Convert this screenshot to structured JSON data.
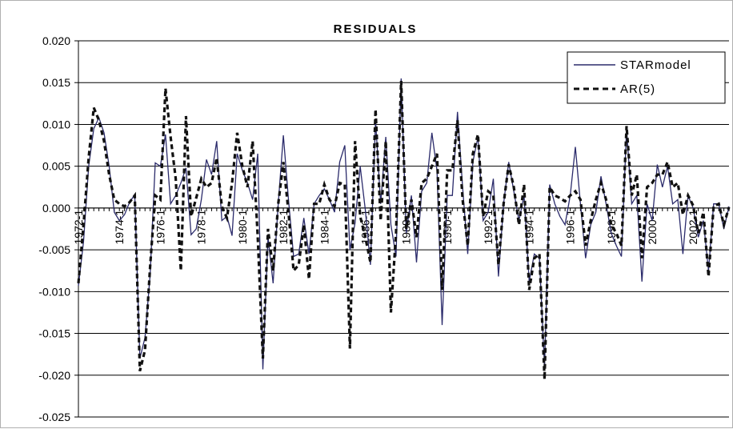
{
  "chart_data": {
    "type": "line",
    "title": "RESIDUALS",
    "xlabel": "",
    "ylabel": "",
    "ylim": [
      -0.025,
      0.02
    ],
    "y_ticks": [
      "0.020",
      "0.015",
      "0.010",
      "0.005",
      "0.000",
      "-0.005",
      "-0.010",
      "-0.015",
      "-0.020",
      "-0.025"
    ],
    "x_tick_labels": [
      "1972-1",
      "1974-1",
      "1976-1",
      "1978-1",
      "1980-1",
      "1982-1",
      "1984-1",
      "1986-1",
      "1988-1",
      "1990-1",
      "1992-1",
      "1994-1",
      "1996-1",
      "1998-1",
      "2000-1",
      "2002-1"
    ],
    "x_start_label": "1972-1",
    "periods_per_year": 4,
    "grid": "horizontal",
    "legend_position": "top-right",
    "series": [
      {
        "name": "STARmodel",
        "style": "solid",
        "color": "#2b2b6b",
        "values": [
          -0.0093,
          -0.004,
          0.005,
          0.0095,
          0.0108,
          0.009,
          0.005,
          -0.0005,
          -0.0015,
          -0.0008,
          0.0007,
          0.0016,
          -0.018,
          -0.0155,
          -0.008,
          0.0054,
          0.005,
          0.0088,
          0.0005,
          0.0015,
          0.003,
          0.0048,
          -0.0032,
          -0.0025,
          0.001,
          0.0058,
          0.004,
          0.008,
          -0.0015,
          -0.001,
          -0.0033,
          0.0065,
          0.0045,
          0.003,
          0.001,
          0.0065,
          -0.0193,
          -0.0035,
          -0.009,
          0.0005,
          0.0087,
          0.001,
          -0.0058,
          -0.0055,
          -0.0012,
          -0.0055,
          0.0005,
          0.0015,
          0.0023,
          0.001,
          -0.0005,
          0.0055,
          0.0075,
          -0.005,
          -0.0018,
          0.005,
          -0.0002,
          -0.0068,
          0.0105,
          0.0005,
          0.0085,
          -0.002,
          -0.0058,
          0.0155,
          -0.003,
          0.0015,
          -0.0065,
          0.002,
          0.003,
          0.009,
          0.0045,
          -0.014,
          0.0015,
          0.0015,
          0.0115,
          0.0025,
          -0.0055,
          0.0055,
          0.0085,
          -0.0015,
          -0.0005,
          0.0035,
          -0.0082,
          0.0005,
          0.0055,
          0.002,
          -0.0015,
          0.0015,
          -0.0088,
          -0.0055,
          -0.006,
          -0.019,
          0.0028,
          0.0005,
          -0.001,
          -0.002,
          0.0015,
          0.0073,
          0.0005,
          -0.006,
          -0.002,
          -0.0005,
          0.0038,
          0.0005,
          -0.003,
          -0.0045,
          -0.0058,
          0.0095,
          0.0005,
          0.0015,
          -0.0088,
          0.0005,
          -0.0015,
          0.0052,
          0.0025,
          0.005,
          0.0005,
          0.001,
          -0.0055,
          0.0015,
          0.0,
          -0.0035,
          -0.0015,
          -0.0075,
          0.0005,
          0.0005,
          -0.0025,
          0.0002
        ]
      },
      {
        "name": "AR(5)",
        "style": "dashed",
        "color": "#111111",
        "values": [
          -0.009,
          -0.002,
          0.006,
          0.012,
          0.0105,
          0.008,
          0.004,
          0.001,
          0.0005,
          0.0002,
          0.0007,
          0.0015,
          -0.0195,
          -0.017,
          -0.007,
          0.0015,
          0.001,
          0.0143,
          0.0085,
          0.0035,
          -0.0075,
          0.011,
          -0.001,
          0.0012,
          0.0035,
          0.0025,
          0.003,
          0.006,
          0.0002,
          -0.0012,
          0.003,
          0.009,
          0.005,
          0.0025,
          0.008,
          -0.0035,
          -0.018,
          -0.0025,
          -0.0075,
          0.0005,
          0.0055,
          -0.0005,
          -0.0075,
          -0.0068,
          -0.002,
          -0.0085,
          0.0005,
          0.0005,
          0.0028,
          0.001,
          0.0002,
          0.003,
          0.0028,
          -0.0168,
          0.008,
          -0.001,
          -0.0035,
          -0.0065,
          0.0118,
          -0.0015,
          0.008,
          -0.0125,
          -0.003,
          0.0152,
          -0.0025,
          0.001,
          -0.0035,
          0.003,
          0.0035,
          0.005,
          0.0065,
          -0.0098,
          0.0045,
          0.0045,
          0.0105,
          0.001,
          -0.0045,
          0.0065,
          0.0088,
          -0.001,
          0.002,
          0.0015,
          -0.0068,
          0.0005,
          0.0052,
          0.0025,
          -0.002,
          0.0028,
          -0.0098,
          -0.006,
          -0.0055,
          -0.0205,
          0.0025,
          0.0015,
          0.0012,
          0.0008,
          0.0015,
          0.002,
          0.001,
          -0.0045,
          -0.0015,
          0.001,
          0.003,
          0.001,
          -0.002,
          -0.003,
          -0.0045,
          0.0098,
          0.0015,
          0.004,
          -0.006,
          0.0025,
          0.003,
          0.004,
          0.004,
          0.0055,
          0.0025,
          0.003,
          -0.0008,
          0.0015,
          0.0003,
          -0.003,
          -0.0005,
          -0.0082,
          0.0002,
          0.0005,
          -0.002,
          0.0001
        ]
      }
    ]
  }
}
